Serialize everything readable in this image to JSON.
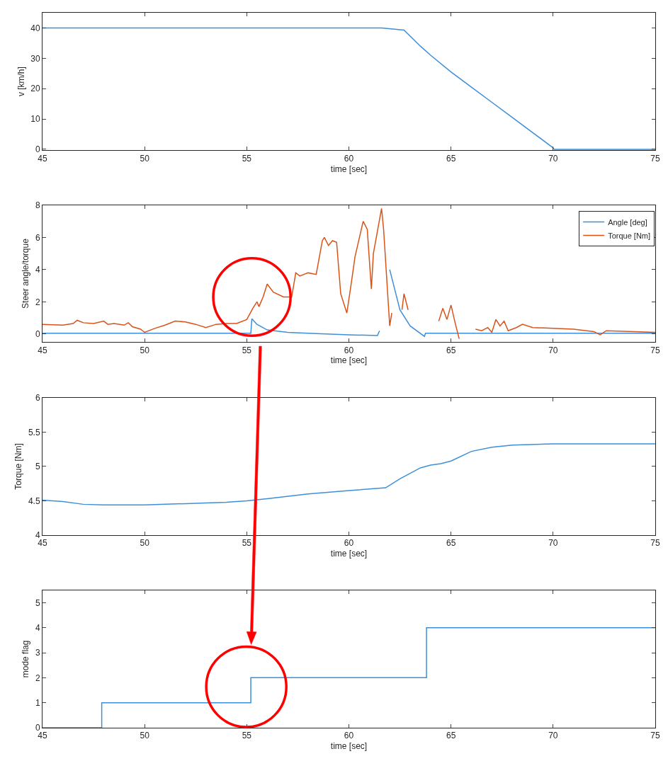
{
  "chart_data": [
    {
      "type": "line",
      "xlabel": "time [sec]",
      "ylabel": "v [km/h]",
      "xlim": [
        45,
        75
      ],
      "xticks": [
        45,
        50,
        55,
        60,
        65,
        70,
        75
      ],
      "ylim": [
        -0.3,
        45
      ],
      "yticks": [
        0,
        10,
        20,
        30,
        40
      ],
      "legend": false,
      "series": [
        {
          "color": "#3d8fd9",
          "x": [
            45,
            61.6,
            62.7,
            63.5,
            64,
            65,
            66,
            67,
            68,
            69,
            70,
            70.05,
            75
          ],
          "values": [
            40,
            40,
            39.3,
            34,
            31,
            25.5,
            20.5,
            15.5,
            10.5,
            5.5,
            0.5,
            0,
            0
          ]
        }
      ]
    },
    {
      "type": "line",
      "xlabel": "time [sec]",
      "ylabel": "Steer angle/torque",
      "xlim": [
        45,
        75
      ],
      "xticks": [
        45,
        50,
        55,
        60,
        65,
        70,
        75
      ],
      "ylim": [
        -0.5,
        8
      ],
      "yticks": [
        0,
        2,
        4,
        6,
        8
      ],
      "legend": "top right",
      "series": [
        {
          "name": "Angle [deg]",
          "color": "#3d8fd9",
          "x": [
            45,
            55.2,
            55.25,
            55.5,
            56,
            57,
            58,
            60,
            61.4,
            61.5,
            61.7,
            61.8,
            62,
            62.5,
            63,
            63.7,
            63.75,
            75
          ],
          "values": [
            0.05,
            0.05,
            0.95,
            0.6,
            0.25,
            0.1,
            0.05,
            -0.05,
            -0.1,
            0.2,
            null,
            null,
            4,
            1.5,
            0.5,
            -0.15,
            0.05,
            0.05
          ]
        },
        {
          "name": "Torque [Nm]",
          "color": "#d95319",
          "x": [
            45,
            46,
            46.5,
            46.7,
            47,
            47.5,
            48,
            48.2,
            48.5,
            49,
            49.2,
            49.4,
            49.8,
            50,
            50.5,
            51,
            51.5,
            52,
            52.5,
            53,
            53.5,
            54,
            54.5,
            55,
            55.3,
            55.5,
            55.6,
            55.8,
            56,
            56.3,
            56.8,
            57.2,
            57.4,
            57.6,
            58,
            58.4,
            58.7,
            58.8,
            59,
            59.2,
            59.4,
            59.6,
            59.9,
            60.1,
            60.3,
            60.7,
            60.9,
            61.1,
            61.2,
            61.6,
            61.7,
            62,
            62.1,
            62.3,
            62.5,
            62.6,
            62.7,
            62.9,
            63,
            64.2,
            64.4,
            64.6,
            64.8,
            65,
            65.2,
            65.4,
            65.6,
            66,
            66.2,
            66.5,
            66.8,
            67,
            67.2,
            67.4,
            67.6,
            67.8,
            68.2,
            68.5,
            69,
            70,
            71,
            72,
            72.3,
            72.6,
            74,
            75
          ],
          "values": [
            0.6,
            0.55,
            0.65,
            0.85,
            0.7,
            0.65,
            0.8,
            0.6,
            0.65,
            0.55,
            0.7,
            0.45,
            0.3,
            0.1,
            0.35,
            0.55,
            0.8,
            0.75,
            0.6,
            0.4,
            0.6,
            0.65,
            0.65,
            0.9,
            1.6,
            2,
            1.7,
            2.3,
            3.1,
            2.6,
            2.3,
            2.3,
            3.8,
            3.6,
            3.8,
            3.7,
            5.8,
            6,
            5.5,
            5.8,
            5.7,
            2.5,
            1.3,
            3,
            4.8,
            7,
            6.5,
            2.8,
            5,
            7.8,
            6.5,
            0.5,
            1.3,
            null,
            null,
            1.5,
            2.5,
            1.5,
            null,
            null,
            0.8,
            1.6,
            0.9,
            1.8,
            0.7,
            -0.3,
            null,
            null,
            0.3,
            0.2,
            0.4,
            0.1,
            0.9,
            0.5,
            0.8,
            0.2,
            0.4,
            0.6,
            0.4,
            0.35,
            0.3,
            0.15,
            -0.05,
            0.2,
            0.15,
            0.1
          ]
        }
      ]
    },
    {
      "type": "line",
      "xlabel": "time [sec]",
      "ylabel": "Torque [Nm]",
      "xlim": [
        45,
        75
      ],
      "xticks": [
        45,
        50,
        55,
        60,
        65,
        70,
        75
      ],
      "ylim": [
        4,
        6
      ],
      "yticks": [
        4,
        4.5,
        5,
        5.5,
        6
      ],
      "legend": false,
      "series": [
        {
          "color": "#3d8fd9",
          "x": [
            45,
            46,
            47,
            48,
            50,
            52,
            54,
            55,
            56,
            58,
            60,
            61.8,
            62.5,
            63.5,
            64,
            64.5,
            65,
            66,
            67,
            68,
            70,
            75
          ],
          "values": [
            4.51,
            4.49,
            4.45,
            4.44,
            4.44,
            4.46,
            4.48,
            4.5,
            4.53,
            4.6,
            4.65,
            4.69,
            4.82,
            4.98,
            5.02,
            5.04,
            5.08,
            5.22,
            5.28,
            5.31,
            5.33,
            5.33
          ]
        }
      ]
    },
    {
      "type": "step",
      "xlabel": "time [sec]",
      "ylabel": "mode flag",
      "xlim": [
        45,
        75
      ],
      "xticks": [
        45,
        50,
        55,
        60,
        65,
        70,
        75
      ],
      "ylim": [
        0,
        5.5
      ],
      "yticks": [
        0,
        1,
        2,
        3,
        4,
        5
      ],
      "legend": false,
      "series": [
        {
          "color": "#3d8fd9",
          "x": [
            45,
            47.9,
            55.2,
            63.8,
            75
          ],
          "values": [
            0,
            1,
            2,
            4,
            4
          ]
        }
      ]
    }
  ]
}
